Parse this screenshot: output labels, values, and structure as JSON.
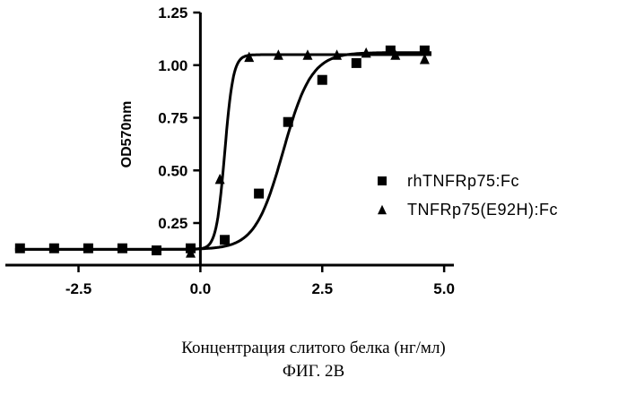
{
  "chart_data": {
    "type": "scatter",
    "xlabel": "",
    "ylabel": "OD570nm",
    "xlim": [
      -4,
      5.2
    ],
    "ylim": [
      0.05,
      1.25
    ],
    "x_ticks": [
      -2.5,
      0.0,
      2.5,
      5.0
    ],
    "x_tick_labels": [
      "-2.5",
      "0.0",
      "2.5",
      "5.0"
    ],
    "y_ticks": [
      0.25,
      0.5,
      0.75,
      1.0,
      1.25
    ],
    "y_tick_labels": [
      "0.25",
      "0.50",
      "0.75",
      "1.00",
      "1.25"
    ],
    "grid": false,
    "legend_position": "right",
    "series": [
      {
        "name": "rhTNFRp75:Fc",
        "marker": "square",
        "color": "#000000",
        "x": [
          -3.7,
          -3.0,
          -2.3,
          -1.6,
          -0.9,
          -0.2,
          0.5,
          1.2,
          1.8,
          2.5,
          3.2,
          3.9,
          4.6
        ],
        "y": [
          0.13,
          0.13,
          0.13,
          0.13,
          0.12,
          0.13,
          0.17,
          0.39,
          0.73,
          0.93,
          1.01,
          1.07,
          1.07
        ],
        "fit": {
          "bottom": 0.125,
          "top": 1.06,
          "logEC50": 1.7,
          "hill": 1.5
        }
      },
      {
        "name": "TNFRp75(E92H):Fc",
        "marker": "triangle",
        "color": "#000000",
        "x": [
          -0.2,
          0.4,
          1.0,
          1.6,
          2.2,
          2.8,
          3.4,
          4.0,
          4.6
        ],
        "y": [
          0.11,
          0.46,
          1.04,
          1.05,
          1.05,
          1.05,
          1.06,
          1.05,
          1.03
        ],
        "fit": {
          "bottom": 0.125,
          "top": 1.05,
          "logEC50": 0.5,
          "hill": 5.0
        }
      }
    ]
  },
  "caption": {
    "line1": "Концентрация слитого белка (нг/мл)",
    "line2": "ФИГ. 2В"
  }
}
